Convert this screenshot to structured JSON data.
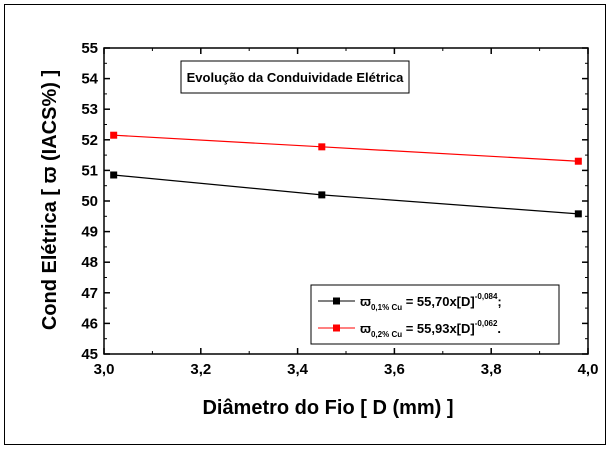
{
  "chart_data": {
    "type": "line",
    "title": "Evolução da Conduividade Elétrica",
    "xlabel": "Diâmetro do Fio [ D (mm) ]",
    "ylabel": "Cond Elétrica [ ϖ (IACS%) ]",
    "xlim": [
      3.0,
      4.0
    ],
    "ylim": [
      45,
      55
    ],
    "xticks": [
      "3,0",
      "3,2",
      "3,4",
      "3,6",
      "3,8",
      "4,0"
    ],
    "yticks": [
      "45",
      "46",
      "47",
      "48",
      "49",
      "50",
      "51",
      "52",
      "53",
      "54",
      "55"
    ],
    "x": [
      3.02,
      3.45,
      3.98
    ],
    "series": [
      {
        "name": "ϖ 0,1% Cu = 55,70x[D]-0,084;",
        "legend_symbol": "ϖ",
        "legend_subscript": "0,1% Cu",
        "legend_main": " = 55,70x[D]",
        "legend_exponent": "-0,084",
        "legend_end": ";",
        "color": "#000000",
        "values": [
          50.85,
          50.2,
          49.58
        ]
      },
      {
        "name": "ϖ 0,2% Cu = 55,93x[D]-0,062.",
        "legend_symbol": "ϖ",
        "legend_subscript": "0,2% Cu",
        "legend_main": " = 55,93x[D]",
        "legend_exponent": "-0,062",
        "legend_end": ".",
        "color": "#ff0000",
        "values": [
          52.15,
          51.77,
          51.3
        ]
      }
    ],
    "legend_position": "bottom-right",
    "grid": false
  }
}
